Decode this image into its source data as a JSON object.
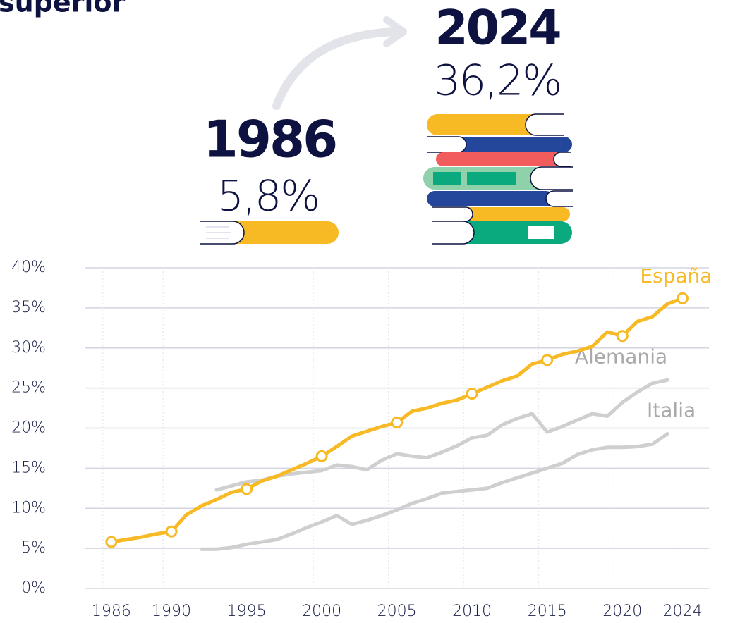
{
  "chart_data": {
    "type": "line",
    "title": "superior",
    "highlights": [
      {
        "year": "1986",
        "value_label": "5,8%"
      },
      {
        "year": "2024",
        "value_label": "36,2%"
      }
    ],
    "x": [
      1986,
      1987,
      1988,
      1989,
      1990,
      1991,
      1992,
      1993,
      1994,
      1995,
      1996,
      1997,
      1998,
      1999,
      2000,
      2001,
      2002,
      2003,
      2004,
      2005,
      2006,
      2007,
      2008,
      2009,
      2010,
      2011,
      2012,
      2013,
      2014,
      2015,
      2016,
      2017,
      2018,
      2019,
      2020,
      2021,
      2022,
      2023,
      2024
    ],
    "series": [
      {
        "name": "España",
        "color": "#f7b924",
        "values": [
          5.8,
          6.1,
          6.4,
          6.8,
          7.1,
          9.2,
          10.3,
          11.1,
          12.0,
          12.4,
          13.4,
          14.0,
          14.8,
          15.6,
          16.5,
          17.7,
          19.0,
          19.6,
          20.2,
          20.7,
          22.1,
          22.5,
          23.1,
          23.5,
          24.3,
          25.1,
          25.9,
          26.5,
          28.0,
          28.5,
          29.2,
          29.6,
          30.2,
          32.0,
          31.5,
          33.3,
          33.9,
          35.5,
          36.2
        ]
      },
      {
        "name": "Alemania",
        "color": "#cfcfcf",
        "values": [
          null,
          null,
          null,
          null,
          null,
          null,
          null,
          12.3,
          12.8,
          13.3,
          13.5,
          14.0,
          14.3,
          14.5,
          14.7,
          15.4,
          15.2,
          14.8,
          16.0,
          16.8,
          16.5,
          16.3,
          17.0,
          17.8,
          18.8,
          19.1,
          20.4,
          21.2,
          21.8,
          19.5,
          20.2,
          21.0,
          21.8,
          21.5,
          23.2,
          24.5,
          25.6,
          26.0,
          null
        ]
      },
      {
        "name": "Italia",
        "color": "#cfcfcf",
        "values": [
          null,
          null,
          null,
          null,
          null,
          null,
          4.9,
          4.9,
          5.1,
          5.5,
          5.8,
          6.1,
          6.8,
          7.6,
          8.3,
          9.1,
          8.0,
          8.5,
          9.1,
          9.8,
          10.6,
          11.2,
          11.9,
          12.1,
          12.3,
          12.5,
          13.2,
          13.8,
          14.4,
          15.0,
          15.6,
          16.7,
          17.3,
          17.6,
          17.6,
          17.7,
          18.0,
          19.3,
          null
        ]
      }
    ],
    "markers_at": [
      1986,
      1990,
      1995,
      2000,
      2005,
      2010,
      2015,
      2020,
      2024
    ],
    "xlim": [
      1984.6,
      2026.7
    ],
    "xticks": [
      1986,
      1990,
      1995,
      2000,
      2005,
      2010,
      2015,
      2020,
      2024
    ],
    "ylim": [
      0,
      40
    ],
    "yticks": [
      {
        "value": 0,
        "label": "0%"
      },
      {
        "value": 5,
        "label": "5%"
      },
      {
        "value": 10,
        "label": "10%"
      },
      {
        "value": 15,
        "label": "15%"
      },
      {
        "value": 20,
        "label": "20%"
      },
      {
        "value": 25,
        "label": "25%"
      },
      {
        "value": 30,
        "label": "30%"
      },
      {
        "value": 35,
        "label": "35%"
      },
      {
        "value": 40,
        "label": "40%"
      }
    ],
    "grid": true
  }
}
